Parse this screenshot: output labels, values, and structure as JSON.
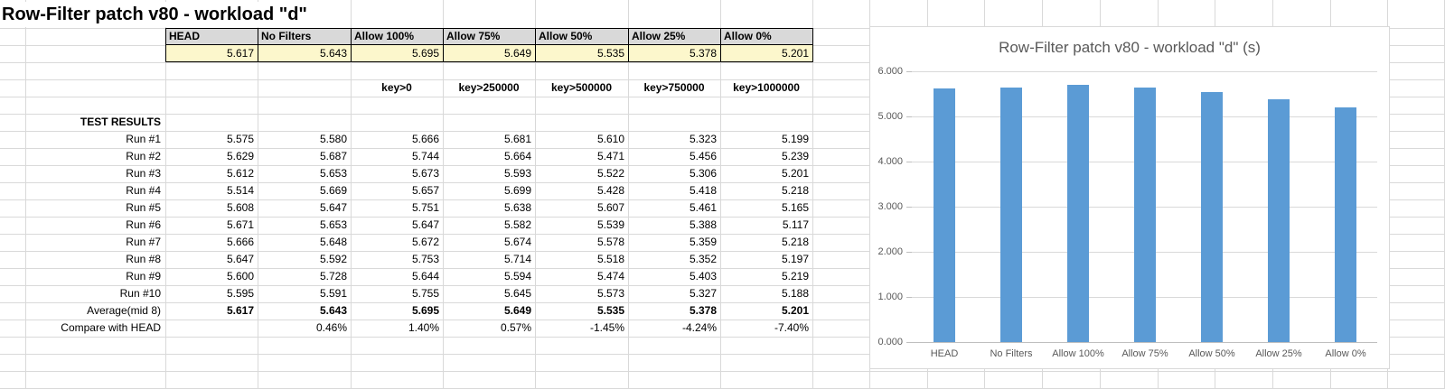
{
  "sheet": {
    "title": "Row-Filter patch v80 - workload \"d\"",
    "columns": [
      "HEAD",
      "No Filters",
      "Allow 100%",
      "Allow 75%",
      "Allow 50%",
      "Allow 25%",
      "Allow 0%"
    ],
    "summary_values": [
      "5.617",
      "5.643",
      "5.695",
      "5.649",
      "5.535",
      "5.378",
      "5.201"
    ],
    "key_labels": [
      "key>0",
      "key>250000",
      "key>500000",
      "key>750000",
      "key>1000000"
    ],
    "section_label": "TEST RESULTS",
    "runs": [
      {
        "label": "Run #1",
        "values": [
          "5.575",
          "5.580",
          "5.666",
          "5.681",
          "5.610",
          "5.323",
          "5.199"
        ]
      },
      {
        "label": "Run #2",
        "values": [
          "5.629",
          "5.687",
          "5.744",
          "5.664",
          "5.471",
          "5.456",
          "5.239"
        ]
      },
      {
        "label": "Run #3",
        "values": [
          "5.612",
          "5.653",
          "5.673",
          "5.593",
          "5.522",
          "5.306",
          "5.201"
        ]
      },
      {
        "label": "Run #4",
        "values": [
          "5.514",
          "5.669",
          "5.657",
          "5.699",
          "5.428",
          "5.418",
          "5.218"
        ]
      },
      {
        "label": "Run #5",
        "values": [
          "5.608",
          "5.647",
          "5.751",
          "5.638",
          "5.607",
          "5.461",
          "5.165"
        ]
      },
      {
        "label": "Run #6",
        "values": [
          "5.671",
          "5.653",
          "5.647",
          "5.582",
          "5.539",
          "5.388",
          "5.117"
        ]
      },
      {
        "label": "Run #7",
        "values": [
          "5.666",
          "5.648",
          "5.672",
          "5.674",
          "5.578",
          "5.359",
          "5.218"
        ]
      },
      {
        "label": "Run #8",
        "values": [
          "5.647",
          "5.592",
          "5.753",
          "5.714",
          "5.518",
          "5.352",
          "5.197"
        ]
      },
      {
        "label": "Run #9",
        "values": [
          "5.600",
          "5.728",
          "5.644",
          "5.594",
          "5.474",
          "5.403",
          "5.219"
        ]
      },
      {
        "label": "Run #10",
        "values": [
          "5.595",
          "5.591",
          "5.755",
          "5.645",
          "5.573",
          "5.327",
          "5.188"
        ]
      }
    ],
    "average": {
      "label": "Average(mid 8)",
      "values": [
        "5.617",
        "5.643",
        "5.695",
        "5.649",
        "5.535",
        "5.378",
        "5.201"
      ]
    },
    "compare": {
      "label": "Compare with HEAD",
      "values": [
        "",
        "0.46%",
        "1.40%",
        "0.57%",
        "-1.45%",
        "-4.24%",
        "-7.40%"
      ]
    }
  },
  "chart_data": {
    "type": "bar",
    "title": "Row-Filter patch v80 - workload \"d\" (s)",
    "categories": [
      "HEAD",
      "No Filters",
      "Allow 100%",
      "Allow 75%",
      "Allow 50%",
      "Allow 25%",
      "Allow 0%"
    ],
    "values": [
      5.617,
      5.643,
      5.695,
      5.649,
      5.535,
      5.378,
      5.201
    ],
    "xlabel": "",
    "ylabel": "",
    "ylim": [
      0,
      6
    ],
    "ytick_labels": [
      "0.000",
      "1.000",
      "2.000",
      "3.000",
      "4.000",
      "5.000",
      "6.000"
    ],
    "grid": true,
    "legend": false,
    "bar_color": "#5B9BD5"
  },
  "colors": {
    "header_fill": "#D9D9D9",
    "highlight_fill": "#FCF7CC",
    "bar": "#5B9BD5",
    "chart_text": "#595959",
    "sheet_gridline": "#D9D9D9",
    "cell_border": "#000000"
  }
}
